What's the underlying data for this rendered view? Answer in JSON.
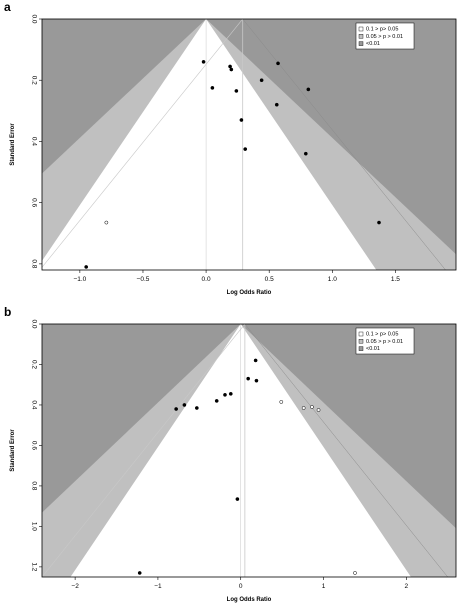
{
  "colors": {
    "p_gt_010": "#ffffff",
    "p_005_010": "#c0c0c0",
    "p_lt_001": "#999999",
    "frame": "#000000",
    "guide": "#c8c8c8",
    "point": "#000000"
  },
  "chart_data": [
    {
      "type": "scatter",
      "panel_label": "a",
      "title": "",
      "xlabel": "Log Odds Ratio",
      "ylabel": "Standard Error",
      "xlim": [
        -1.3,
        1.98
      ],
      "ylim": [
        0.0,
        0.82
      ],
      "y_reversed": true,
      "pooled_estimate": 0.29,
      "x_ticks": [
        -1.0,
        -0.5,
        0.0,
        0.5,
        1.0,
        1.5
      ],
      "x_tick_labels": [
        "−1.0",
        "−0.5",
        "0.0",
        "0.5",
        "1.0",
        "1.5"
      ],
      "y_ticks": [
        0.0,
        0.2,
        0.4,
        0.6,
        0.8
      ],
      "y_tick_labels": [
        "0.0",
        "0.2",
        "0.4",
        "0.6",
        "0.8"
      ],
      "legend": {
        "position": "top-right",
        "entries": [
          "0.1 > p> 0.05",
          "0.05 > p > 0.01",
          "<0.01"
        ]
      },
      "points": [
        {
          "x": -0.02,
          "y": 0.14,
          "filled": true
        },
        {
          "x": 0.05,
          "y": 0.225,
          "filled": true
        },
        {
          "x": 0.19,
          "y": 0.155,
          "filled": true
        },
        {
          "x": 0.2,
          "y": 0.165,
          "filled": true
        },
        {
          "x": 0.24,
          "y": 0.235,
          "filled": true
        },
        {
          "x": 0.28,
          "y": 0.33,
          "filled": true
        },
        {
          "x": 0.31,
          "y": 0.425,
          "filled": true
        },
        {
          "x": 0.44,
          "y": 0.2,
          "filled": true
        },
        {
          "x": 0.56,
          "y": 0.28,
          "filled": true
        },
        {
          "x": 0.57,
          "y": 0.145,
          "filled": true
        },
        {
          "x": 0.79,
          "y": 0.44,
          "filled": true
        },
        {
          "x": 0.81,
          "y": 0.23,
          "filled": true
        },
        {
          "x": 1.37,
          "y": 0.665,
          "filled": true
        },
        {
          "x": -0.79,
          "y": 0.665,
          "filled": false
        },
        {
          "x": -0.95,
          "y": 0.81,
          "filled": true
        }
      ]
    },
    {
      "type": "scatter",
      "panel_label": "b",
      "title": "",
      "xlabel": "Log Odds Ratio",
      "ylabel": "Standard Error",
      "xlim": [
        -2.4,
        2.6
      ],
      "ylim": [
        0.0,
        1.25
      ],
      "y_reversed": true,
      "pooled_estimate": 0.05,
      "x_ticks": [
        -2,
        -1,
        0,
        1,
        2
      ],
      "x_tick_labels": [
        "−2",
        "−1",
        "0",
        "1",
        "2"
      ],
      "y_ticks": [
        0.0,
        0.2,
        0.4,
        0.6,
        0.8,
        1.0,
        1.2
      ],
      "y_tick_labels": [
        "0.0",
        "0.2",
        "0.4",
        "0.6",
        "0.8",
        "1.0",
        "1.2"
      ],
      "legend": {
        "position": "top-right",
        "entries": [
          "0.1 > p> 0.05",
          "0.05 > p > 0.01",
          "<0.01"
        ]
      },
      "points": [
        {
          "x": 0.18,
          "y": 0.18,
          "filled": true
        },
        {
          "x": 0.09,
          "y": 0.27,
          "filled": true
        },
        {
          "x": 0.19,
          "y": 0.28,
          "filled": true
        },
        {
          "x": -0.19,
          "y": 0.35,
          "filled": true
        },
        {
          "x": -0.12,
          "y": 0.345,
          "filled": true
        },
        {
          "x": -0.29,
          "y": 0.38,
          "filled": true
        },
        {
          "x": -0.53,
          "y": 0.415,
          "filled": true
        },
        {
          "x": -0.68,
          "y": 0.4,
          "filled": true
        },
        {
          "x": -0.78,
          "y": 0.42,
          "filled": true
        },
        {
          "x": -0.04,
          "y": 0.865,
          "filled": true
        },
        {
          "x": -1.22,
          "y": 1.23,
          "filled": true
        },
        {
          "x": 0.49,
          "y": 0.385,
          "filled": false
        },
        {
          "x": 0.76,
          "y": 0.415,
          "filled": false
        },
        {
          "x": 0.86,
          "y": 0.41,
          "filled": false
        },
        {
          "x": 0.94,
          "y": 0.425,
          "filled": false
        },
        {
          "x": 1.38,
          "y": 1.23,
          "filled": false
        }
      ]
    }
  ]
}
